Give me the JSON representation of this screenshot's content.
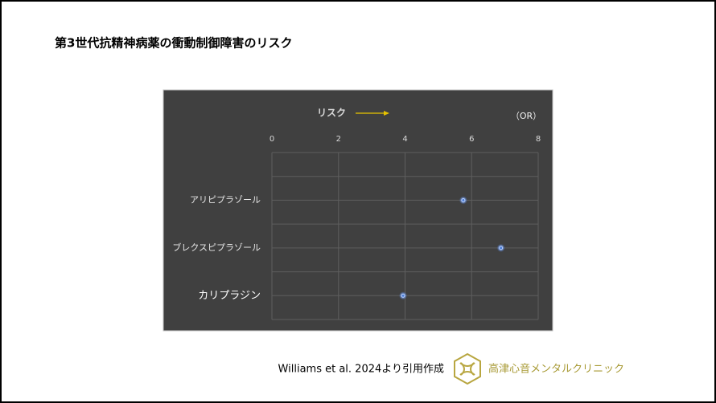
{
  "slide_title": "第3世代抗精神病薬の衝動制御障害のリスク",
  "chart_data": {
    "type": "dot",
    "x_label": "リスク",
    "unit_label": "（OR）",
    "categories": [
      "アリピプラゾール",
      "ブレクスピプラゾール",
      "カリプラジン"
    ],
    "values": [
      5.75,
      6.88,
      3.94
    ],
    "color": "#4f7fd8",
    "xlim": [
      0,
      8
    ],
    "xticks": [
      0,
      2,
      4,
      6,
      8
    ],
    "grid": true
  },
  "footer": {
    "citation": "Williams et al. 2024より引用作成",
    "clinic": "高津心音メンタルクリニック"
  }
}
